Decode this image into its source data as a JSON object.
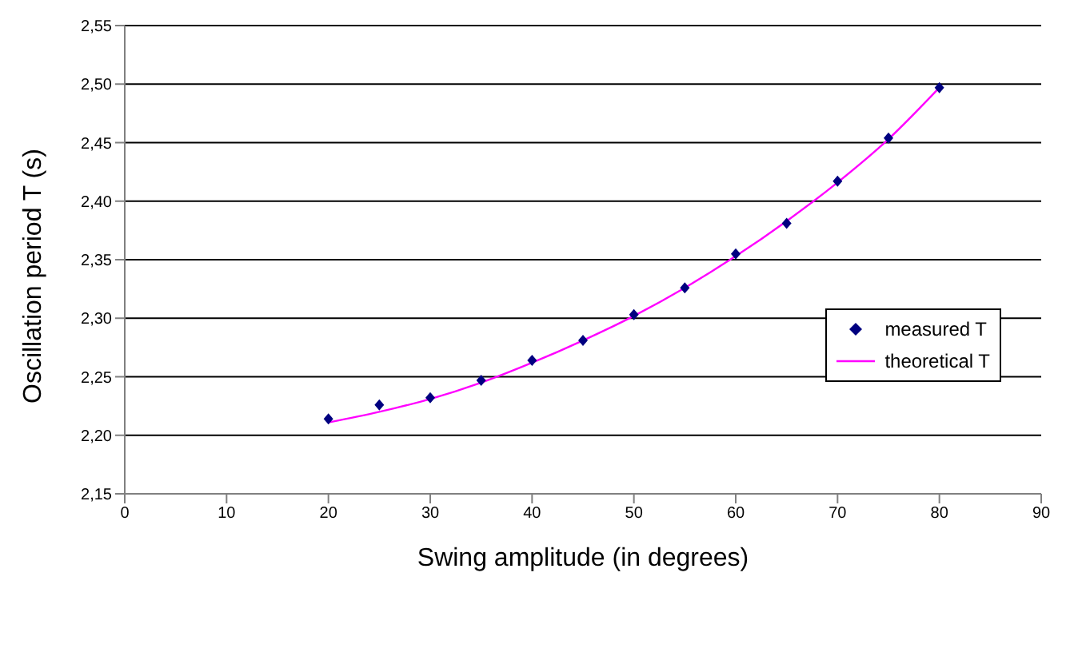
{
  "chart_data": {
    "type": "scatter",
    "xlabel": "Swing amplitude (in degrees)",
    "ylabel": "Oscillation period T (s)",
    "xlim": [
      0,
      90
    ],
    "xticks": [
      0,
      10,
      20,
      30,
      40,
      50,
      60,
      70,
      80,
      90
    ],
    "ylim": [
      2.15,
      2.55
    ],
    "yticks": [
      {
        "value": 2.15,
        "label": "2,15"
      },
      {
        "value": 2.2,
        "label": "2,20"
      },
      {
        "value": 2.25,
        "label": "2,25"
      },
      {
        "value": 2.3,
        "label": "2,30"
      },
      {
        "value": 2.35,
        "label": "2,35"
      },
      {
        "value": 2.4,
        "label": "2,40"
      },
      {
        "value": 2.45,
        "label": "2,45"
      },
      {
        "value": 2.5,
        "label": "2,50"
      },
      {
        "value": 2.55,
        "label": "2,55"
      }
    ],
    "grid": "y",
    "legend": "right",
    "series": [
      {
        "name": "measured T",
        "marker": "diamond",
        "color": "#000080",
        "x": [
          20,
          25,
          30,
          35,
          40,
          45,
          50,
          55,
          60,
          65,
          70,
          75,
          80
        ],
        "values": [
          2.214,
          2.226,
          2.232,
          2.247,
          2.264,
          2.281,
          2.303,
          2.326,
          2.355,
          2.381,
          2.417,
          2.454,
          2.497
        ]
      },
      {
        "name": "theoretical T",
        "type": "line",
        "marker": "none",
        "line_style": "solid",
        "color": "#ff00ff",
        "x": [
          20,
          25,
          30,
          35,
          40,
          45,
          50,
          55,
          60,
          65,
          70,
          75,
          80
        ],
        "values": [
          2.211,
          2.22,
          2.231,
          2.245,
          2.262,
          2.281,
          2.302,
          2.326,
          2.353,
          2.383,
          2.416,
          2.453,
          2.497
        ]
      }
    ]
  }
}
